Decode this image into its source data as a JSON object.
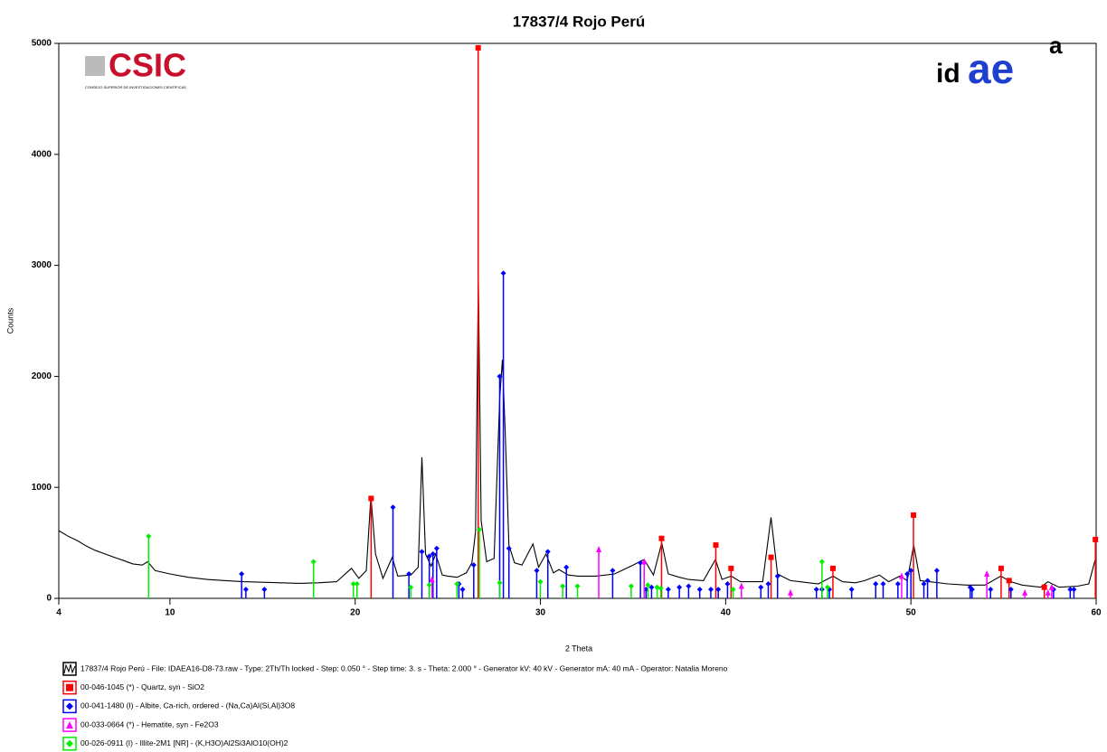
{
  "chart_data": {
    "type": "xrd",
    "title": "17837/4 Rojo Perú",
    "x_label": "2 Theta",
    "y_label": "Counts",
    "logo_left": "CSIC",
    "logo_left_caption": "CONSEJO SUPERIOR DE INVESTIGACIONES CIENTÍFICAS",
    "logo_right": [
      "id",
      "ae",
      "a"
    ],
    "xlim": [
      4,
      60
    ],
    "ylim": [
      0,
      5000
    ],
    "xticks": [
      4,
      10,
      20,
      30,
      40,
      50,
      60
    ],
    "yticks": [
      0,
      1000,
      2000,
      3000,
      4000,
      5000
    ],
    "series": [
      {
        "name": "17837/4 Rojo Perú - File: IDAEA16-D8-73.raw - Type: 2Th/Th locked - Step: 0.050 ° - Step time: 3. s - Theta: 2.000 ° - Generator kV: 40 kV - Generator mA: 40 mA - Operator: Natalia Moreno",
        "style": "line",
        "color": "#000000",
        "x": [
          4,
          4.5,
          5,
          5.5,
          6,
          6.5,
          7,
          7.5,
          8,
          8.5,
          8.8,
          9.2,
          10,
          11,
          12,
          13,
          14,
          15,
          16,
          17,
          18,
          19,
          19.8,
          20.2,
          20.6,
          20.85,
          21.1,
          21.5,
          22,
          22.3,
          23,
          23.4,
          23.6,
          23.8,
          24.1,
          24.35,
          24.7,
          25,
          25.5,
          26,
          26.3,
          26.5,
          26.65,
          26.8,
          27.1,
          27.5,
          27.8,
          27.95,
          28.1,
          28.3,
          28.6,
          29,
          29.6,
          29.9,
          30.3,
          30.7,
          31,
          31.5,
          32,
          33,
          34,
          35,
          35.6,
          36.1,
          36.55,
          36.9,
          37.5,
          38,
          38.8,
          39.45,
          39.8,
          40.3,
          40.8,
          41.5,
          42,
          42.45,
          42.8,
          43.5,
          44,
          45,
          45.8,
          46.3,
          47,
          47.5,
          48.3,
          48.8,
          49.4,
          49.8,
          50.15,
          50.5,
          51,
          52,
          53,
          54,
          54.85,
          55.4,
          56,
          57,
          57.4,
          58,
          59,
          59.6,
          59.95,
          60
        ],
        "values": [
          610,
          560,
          520,
          470,
          430,
          400,
          370,
          340,
          310,
          300,
          330,
          250,
          220,
          190,
          170,
          160,
          150,
          145,
          140,
          135,
          140,
          150,
          270,
          180,
          250,
          920,
          400,
          180,
          370,
          200,
          210,
          280,
          1270,
          400,
          290,
          400,
          210,
          200,
          190,
          230,
          320,
          600,
          2900,
          700,
          330,
          360,
          1800,
          2150,
          1500,
          480,
          320,
          300,
          490,
          280,
          400,
          230,
          260,
          210,
          200,
          200,
          220,
          300,
          350,
          210,
          500,
          220,
          190,
          170,
          160,
          350,
          170,
          200,
          150,
          150,
          150,
          730,
          220,
          160,
          150,
          130,
          200,
          150,
          140,
          160,
          210,
          150,
          200,
          160,
          480,
          160,
          150,
          130,
          120,
          120,
          200,
          150,
          120,
          100,
          150,
          100,
          110,
          130,
          350,
          300
        ]
      },
      {
        "name": "00-046-1045 (*) - Quartz, syn - SiO2",
        "style": "stick",
        "marker": "square",
        "color": "#ff0000",
        "x": [
          20.86,
          26.64,
          36.54,
          39.47,
          40.29,
          42.45,
          45.79,
          50.14,
          54.87,
          55.3,
          57.2,
          59.96
        ],
        "values": [
          900,
          4960,
          540,
          480,
          270,
          370,
          270,
          750,
          270,
          160,
          100,
          530
        ]
      },
      {
        "name": "00-041-1480 (I) - Albite, Ca-rich, ordered - (Na,Ca)Al(Si,Al)3O8",
        "style": "stick",
        "marker": "diamond",
        "color": "#0000ff",
        "x": [
          13.87,
          14.1,
          15.1,
          22.04,
          22.9,
          23.6,
          24.0,
          24.2,
          24.4,
          25.6,
          25.8,
          26.4,
          27.8,
          28.0,
          28.3,
          29.8,
          30.4,
          31.4,
          33.9,
          35.4,
          35.7,
          36.0,
          36.9,
          37.5,
          38.0,
          38.6,
          39.2,
          39.6,
          40.1,
          41.9,
          42.3,
          42.8,
          44.9,
          45.2,
          45.6,
          46.8,
          48.1,
          48.5,
          49.3,
          49.8,
          50.0,
          50.7,
          50.9,
          51.4,
          53.2,
          53.3,
          54.3,
          55.4,
          57.7,
          58.6,
          58.8
        ],
        "values": [
          220,
          80,
          80,
          820,
          220,
          420,
          380,
          400,
          450,
          130,
          80,
          300,
          2000,
          2930,
          450,
          250,
          420,
          280,
          250,
          320,
          80,
          100,
          80,
          100,
          110,
          80,
          80,
          80,
          130,
          100,
          130,
          200,
          80,
          80,
          80,
          80,
          130,
          130,
          130,
          220,
          250,
          130,
          160,
          250,
          100,
          80,
          80,
          80,
          80,
          80,
          80
        ]
      },
      {
        "name": "00-033-0664 (*) - Hematite, syn - Fe2O3",
        "style": "stick",
        "marker": "triangle",
        "color": "#ff00ff",
        "x": [
          24.15,
          33.15,
          35.6,
          40.85,
          43.5,
          49.5,
          54.1,
          56.15,
          57.4,
          57.6
        ],
        "values": [
          170,
          440,
          330,
          110,
          50,
          200,
          220,
          50,
          50,
          100
        ]
      },
      {
        "name": "00-026-0911 (I) - Illite-2M1 [NR] - (K,H3O)Al2Si3AlO10(OH)2",
        "style": "stick",
        "marker": "diamond",
        "color": "#00ee00",
        "x": [
          8.85,
          17.75,
          19.9,
          20.1,
          23.0,
          24.0,
          25.5,
          26.7,
          27.8,
          30.0,
          31.2,
          32.0,
          34.9,
          35.8,
          36.3,
          36.5,
          40.4,
          45.2,
          45.5
        ],
        "values": [
          560,
          330,
          130,
          130,
          100,
          120,
          130,
          620,
          140,
          150,
          110,
          110,
          110,
          120,
          100,
          90,
          80,
          330,
          100
        ]
      }
    ]
  }
}
